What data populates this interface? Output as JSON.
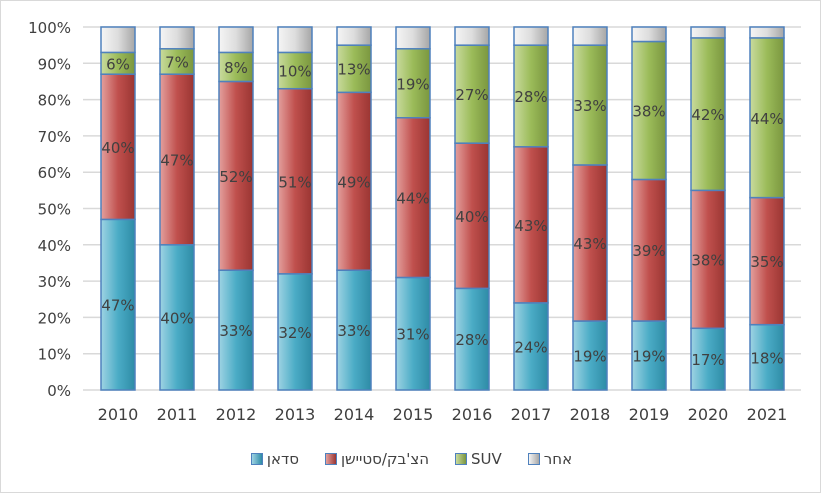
{
  "chart_data": {
    "type": "bar",
    "stacked": true,
    "percent": true,
    "title": "",
    "xlabel": "",
    "ylabel": "",
    "ylim": [
      0,
      100
    ],
    "yticks": [
      "0%",
      "10%",
      "20%",
      "30%",
      "40%",
      "50%",
      "60%",
      "70%",
      "80%",
      "90%",
      "100%"
    ],
    "grid": true,
    "legend_position": "bottom",
    "categories": [
      "2010",
      "2011",
      "2012",
      "2013",
      "2014",
      "2015",
      "2016",
      "2017",
      "2018",
      "2019",
      "2020",
      "2021"
    ],
    "series": [
      {
        "name": "סדאן",
        "color": "#4BACC6",
        "values": [
          47,
          40,
          33,
          32,
          33,
          31,
          28,
          24,
          19,
          19,
          17,
          18
        ],
        "labels": [
          "47%",
          "40%",
          "33%",
          "32%",
          "33%",
          "31%",
          "28%",
          "24%",
          "19%",
          "19%",
          "17%",
          "18%"
        ]
      },
      {
        "name": "הצ'בק/סטיישן",
        "color": "#C0504D",
        "values": [
          40,
          47,
          52,
          51,
          49,
          44,
          40,
          43,
          43,
          39,
          38,
          35
        ],
        "labels": [
          "40%",
          "47%",
          "52%",
          "51%",
          "49%",
          "44%",
          "40%",
          "43%",
          "43%",
          "39%",
          "38%",
          "35%"
        ]
      },
      {
        "name": "SUV",
        "color": "#9BBB59",
        "values": [
          6,
          7,
          8,
          10,
          13,
          19,
          27,
          28,
          33,
          38,
          42,
          44
        ],
        "labels": [
          "6%",
          "7%",
          "8%",
          "10%",
          "13%",
          "19%",
          "27%",
          "28%",
          "33%",
          "38%",
          "42%",
          "44%"
        ]
      },
      {
        "name": "אחר",
        "color": "#D9D9D9",
        "values": [
          7,
          6,
          7,
          7,
          5,
          6,
          5,
          5,
          5,
          4,
          3,
          3
        ],
        "labels": null
      }
    ]
  }
}
